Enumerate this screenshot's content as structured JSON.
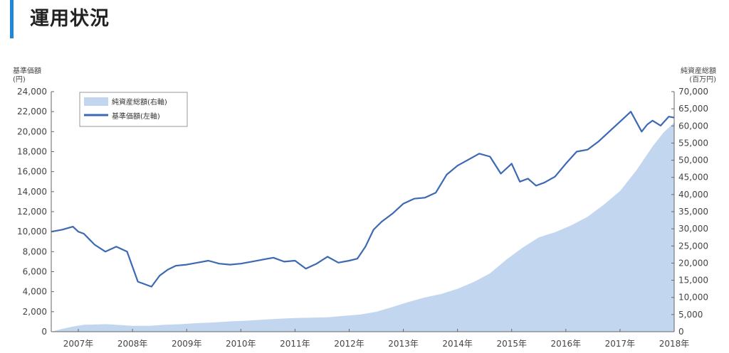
{
  "header": {
    "title": "運用状況",
    "accent_color": "#1f87d9"
  },
  "chart_data": {
    "type": "line",
    "title": "",
    "y_left": {
      "label_line1": "基準価額",
      "label_line2": "(円)",
      "range": [
        0,
        24000
      ],
      "ticks": [
        "0",
        "2,000",
        "4,000",
        "6,000",
        "8,000",
        "10,000",
        "12,000",
        "14,000",
        "16,000",
        "18,000",
        "20,000",
        "22,000",
        "24,000"
      ]
    },
    "y_right": {
      "label_line1": "純資産総額",
      "label_line2": "(百万円)",
      "range": [
        0,
        70000
      ],
      "ticks": [
        "0",
        "5,000",
        "10,000",
        "15,000",
        "20,000",
        "25,000",
        "30,000",
        "35,000",
        "40,000",
        "45,000",
        "50,000",
        "55,000",
        "60,000",
        "65,000",
        "70,000"
      ]
    },
    "x_range": [
      2006.5,
      2018.0
    ],
    "x_ticks": [
      {
        "label": "2007年",
        "x": 2007.0
      },
      {
        "label": "2008年",
        "x": 2008.0
      },
      {
        "label": "2009年",
        "x": 2009.0
      },
      {
        "label": "2010年",
        "x": 2010.0
      },
      {
        "label": "2011年",
        "x": 2011.0
      },
      {
        "label": "2012年",
        "x": 2012.0
      },
      {
        "label": "2013年",
        "x": 2013.0
      },
      {
        "label": "2014年",
        "x": 2014.0
      },
      {
        "label": "2015年",
        "x": 2015.0
      },
      {
        "label": "2016年",
        "x": 2016.0
      },
      {
        "label": "2017年",
        "x": 2017.0
      },
      {
        "label": "2018年",
        "x": 2018.0
      }
    ],
    "legend": {
      "placement": "top-left",
      "items": [
        "純資産総額(右軸)",
        "基準価額(左軸)"
      ]
    },
    "series": [
      {
        "name": "純資産総額(右軸)",
        "kind": "area",
        "axis": "right",
        "color": "#c2d6ef",
        "x": [
          2006.5,
          2006.7,
          2006.9,
          2007.1,
          2007.3,
          2007.5,
          2007.7,
          2008.0,
          2008.3,
          2008.6,
          2008.9,
          2009.2,
          2009.5,
          2009.8,
          2010.1,
          2010.4,
          2010.7,
          2011.0,
          2011.3,
          2011.6,
          2011.9,
          2012.2,
          2012.5,
          2012.8,
          2013.1,
          2013.4,
          2013.7,
          2014.0,
          2014.3,
          2014.6,
          2014.9,
          2015.2,
          2015.5,
          2015.8,
          2016.1,
          2016.4,
          2016.7,
          2017.0,
          2017.3,
          2017.6,
          2017.8,
          2018.0
        ],
        "values": [
          0,
          800,
          1500,
          2000,
          2100,
          2200,
          2000,
          1700,
          1700,
          2000,
          2200,
          2500,
          2700,
          3000,
          3200,
          3500,
          3800,
          4000,
          4100,
          4200,
          4600,
          5000,
          5800,
          7200,
          8700,
          10000,
          11000,
          12500,
          14500,
          17000,
          21000,
          24500,
          27500,
          29000,
          31000,
          33500,
          37000,
          41000,
          47000,
          54000,
          58000,
          61000
        ]
      },
      {
        "name": "基準価額(左軸)",
        "kind": "line",
        "axis": "left",
        "color": "#3d68b3",
        "x": [
          2006.5,
          2006.7,
          2006.9,
          2007.0,
          2007.1,
          2007.3,
          2007.5,
          2007.7,
          2007.9,
          2008.0,
          2008.1,
          2008.2,
          2008.35,
          2008.5,
          2008.65,
          2008.8,
          2009.0,
          2009.2,
          2009.4,
          2009.6,
          2009.8,
          2010.0,
          2010.2,
          2010.4,
          2010.6,
          2010.8,
          2011.0,
          2011.2,
          2011.4,
          2011.6,
          2011.8,
          2012.0,
          2012.15,
          2012.3,
          2012.45,
          2012.6,
          2012.8,
          2013.0,
          2013.2,
          2013.4,
          2013.6,
          2013.8,
          2014.0,
          2014.2,
          2014.4,
          2014.6,
          2014.8,
          2015.0,
          2015.15,
          2015.3,
          2015.45,
          2015.6,
          2015.8,
          2016.0,
          2016.2,
          2016.4,
          2016.6,
          2016.8,
          2017.0,
          2017.2,
          2017.4,
          2017.5,
          2017.6,
          2017.75,
          2017.9,
          2018.0
        ],
        "values": [
          10000,
          10200,
          10500,
          10000,
          9800,
          8700,
          8000,
          8500,
          8000,
          6500,
          5000,
          4800,
          4500,
          5600,
          6200,
          6600,
          6700,
          6900,
          7100,
          6800,
          6700,
          6800,
          7000,
          7200,
          7400,
          7000,
          7100,
          6300,
          6800,
          7500,
          6900,
          7100,
          7300,
          8500,
          10200,
          11000,
          11800,
          12800,
          13300,
          13400,
          13900,
          15700,
          16600,
          17200,
          17800,
          17500,
          15800,
          16800,
          15000,
          15300,
          14600,
          14900,
          15500,
          16800,
          18000,
          18200,
          19000,
          20000,
          21000,
          22000,
          20000,
          20700,
          21100,
          20600,
          21500,
          21400
        ]
      }
    ]
  }
}
